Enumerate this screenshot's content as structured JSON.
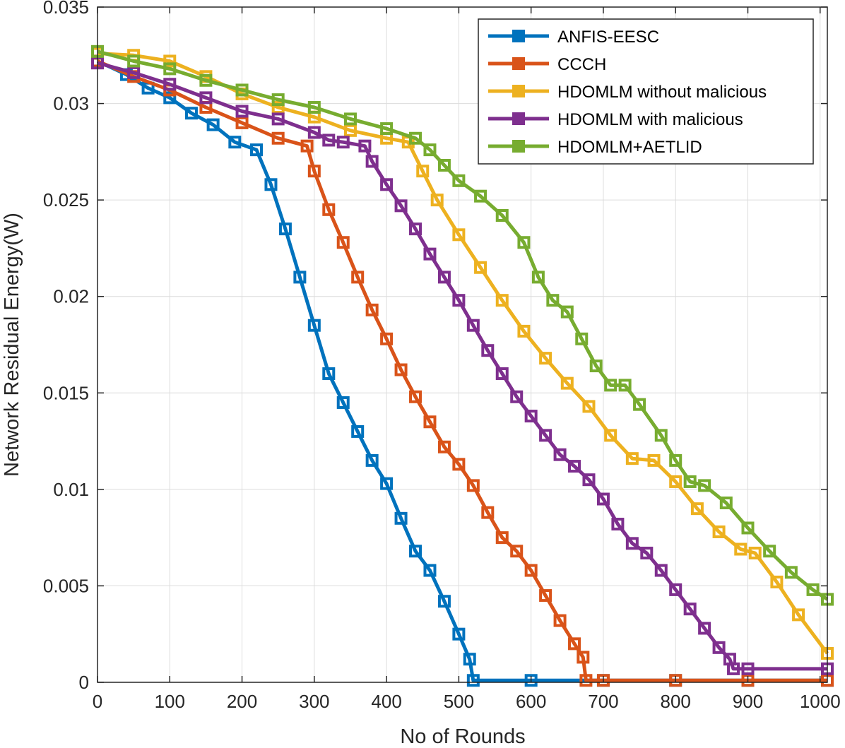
{
  "chart_data": {
    "type": "line",
    "title": "",
    "xlabel": "No of Rounds",
    "ylabel": "Network Residual Energy(W)",
    "xlim": [
      0,
      1010
    ],
    "ylim": [
      0,
      0.035
    ],
    "x_ticks": [
      0,
      100,
      200,
      300,
      400,
      500,
      600,
      700,
      800,
      900,
      1000
    ],
    "x_tick_labels": [
      "0",
      "100",
      "200",
      "300",
      "400",
      "500",
      "600",
      "700",
      "800",
      "900",
      "1000"
    ],
    "y_ticks": [
      0,
      0.005,
      0.01,
      0.015,
      0.02,
      0.025,
      0.03,
      0.035
    ],
    "y_tick_labels": [
      "0",
      "0.005",
      "0.01",
      "0.015",
      "0.02",
      "0.025",
      "0.03",
      "0.035"
    ],
    "grid": true,
    "legend_position": "top-right",
    "series": [
      {
        "name": "ANFIS-EESC",
        "color": "#0072BD",
        "x": [
          0,
          40,
          70,
          100,
          130,
          160,
          190,
          220,
          240,
          260,
          280,
          300,
          320,
          340,
          360,
          380,
          400,
          420,
          440,
          460,
          480,
          500,
          515,
          520,
          600,
          700,
          800,
          900,
          1010
        ],
        "y": [
          0.0322,
          0.0315,
          0.0308,
          0.0303,
          0.0295,
          0.0289,
          0.028,
          0.0276,
          0.0258,
          0.0235,
          0.021,
          0.0185,
          0.016,
          0.0145,
          0.013,
          0.0115,
          0.0103,
          0.0085,
          0.0068,
          0.0058,
          0.0042,
          0.0025,
          0.0012,
          0.0001,
          0.0001,
          0.0001,
          0.0001,
          0.0001,
          0.0001
        ]
      },
      {
        "name": "CCCH",
        "color": "#D95319",
        "x": [
          0,
          50,
          100,
          150,
          200,
          250,
          290,
          300,
          320,
          340,
          360,
          380,
          400,
          420,
          440,
          460,
          480,
          500,
          520,
          540,
          560,
          580,
          600,
          620,
          640,
          660,
          672,
          676,
          700,
          800,
          900,
          1010
        ],
        "y": [
          0.0322,
          0.0314,
          0.0307,
          0.0298,
          0.029,
          0.0282,
          0.0278,
          0.0265,
          0.0245,
          0.0228,
          0.021,
          0.0193,
          0.0178,
          0.0162,
          0.0148,
          0.0135,
          0.0122,
          0.0113,
          0.0102,
          0.0088,
          0.0075,
          0.0068,
          0.0058,
          0.0045,
          0.0032,
          0.002,
          0.0013,
          0.0001,
          0.0001,
          0.0001,
          0.0001,
          0.0001
        ]
      },
      {
        "name": "HDOMLM without malicious",
        "color": "#EDB120",
        "x": [
          0,
          50,
          100,
          150,
          200,
          250,
          300,
          350,
          400,
          430,
          450,
          470,
          500,
          530,
          560,
          590,
          620,
          650,
          680,
          710,
          740,
          770,
          800,
          830,
          860,
          890,
          910,
          940,
          970,
          1010
        ],
        "y": [
          0.0326,
          0.0325,
          0.0322,
          0.0314,
          0.0305,
          0.0298,
          0.0293,
          0.0286,
          0.0282,
          0.028,
          0.0265,
          0.025,
          0.0232,
          0.0215,
          0.0198,
          0.0182,
          0.0168,
          0.0155,
          0.0143,
          0.0128,
          0.0116,
          0.0115,
          0.0104,
          0.009,
          0.0078,
          0.0069,
          0.0067,
          0.0052,
          0.0035,
          0.0015
        ]
      },
      {
        "name": "HDOMLM with malicious",
        "color": "#7E2F8E",
        "x": [
          0,
          50,
          100,
          150,
          200,
          250,
          300,
          320,
          340,
          370,
          380,
          400,
          420,
          440,
          460,
          480,
          500,
          520,
          540,
          560,
          580,
          600,
          620,
          640,
          660,
          680,
          700,
          720,
          740,
          760,
          780,
          800,
          820,
          840,
          860,
          875,
          880,
          900,
          1010
        ],
        "y": [
          0.0321,
          0.0316,
          0.031,
          0.0303,
          0.0296,
          0.0292,
          0.0285,
          0.0281,
          0.028,
          0.0278,
          0.027,
          0.0258,
          0.0247,
          0.0235,
          0.0222,
          0.021,
          0.0198,
          0.0185,
          0.0172,
          0.016,
          0.0148,
          0.0138,
          0.0128,
          0.0118,
          0.0112,
          0.0105,
          0.0095,
          0.0082,
          0.0072,
          0.0067,
          0.0058,
          0.0048,
          0.0038,
          0.0028,
          0.0018,
          0.0012,
          0.0007,
          0.0007,
          0.0007
        ]
      },
      {
        "name": "HDOMLM+AETLID",
        "color": "#77AC30",
        "x": [
          0,
          50,
          100,
          150,
          200,
          250,
          300,
          350,
          400,
          440,
          460,
          480,
          500,
          530,
          560,
          590,
          610,
          630,
          650,
          670,
          690,
          710,
          730,
          750,
          780,
          800,
          820,
          840,
          870,
          900,
          930,
          960,
          990,
          1010
        ],
        "y": [
          0.0327,
          0.0322,
          0.0318,
          0.0312,
          0.0307,
          0.0302,
          0.0298,
          0.0292,
          0.0287,
          0.0282,
          0.0276,
          0.0268,
          0.026,
          0.0252,
          0.0242,
          0.0228,
          0.021,
          0.0198,
          0.0192,
          0.0178,
          0.0164,
          0.0154,
          0.0154,
          0.0144,
          0.0128,
          0.0115,
          0.0104,
          0.0102,
          0.0093,
          0.008,
          0.0068,
          0.0057,
          0.0048,
          0.0043
        ]
      }
    ]
  }
}
